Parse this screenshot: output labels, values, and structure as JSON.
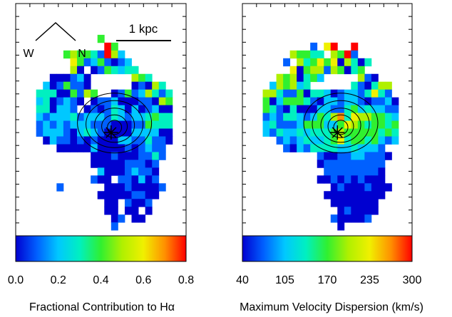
{
  "chart_data": [
    {
      "type": "heatmap",
      "colorbar": {
        "ticks": [
          "0.0",
          "0.2",
          "0.4",
          "0.6",
          "0.8"
        ],
        "range": [
          0.0,
          0.8
        ],
        "label": "Fractional Contribution to Hα"
      },
      "annotations": {
        "scale_bar": "1 kpc",
        "compass_w": "W",
        "compass_n": "N"
      },
      "colormap": [
        "#0000d0",
        "#0060ff",
        "#00c8ff",
        "#00f0c0",
        "#30f030",
        "#b0f000",
        "#f0f000",
        "#ff9000",
        "#ff0000"
      ],
      "grid_cols": 25,
      "grid_rows": 33,
      "fill_tokens": "W:12,4,9 C:13,5,18 E:14,5,8 W:7,6,10 C:8,6,11 T:9,6,6 E:9,6,10 C:10,6,10 E:11,6,6 E:12,6,3 C:13,6,18 C:14,6,12 C:15,6,5 C:8,7,14 E:9,7,8 E:10,7,3 E:11,7,4 E:12,7,8 E:13,7,3 T:14,7,1 E:15,7,2 E:16,7,5 C:8,8,11 E:9,8,0 E:11,8,1 T:12,8,3 C:13,8,10 E:14,8,6 E:15,8,4 E:16,8,7 E:17,8,7 E:5,9,1 E:6,9,1 E:7,9,0 E:8,9,2 E:9,9,4 E:10,9,1 C:17,9,11 T:18,9,8 C:19,9,7 C:4,10,5 E:5,10,1 E:6,10,3 E:7,10,10 T:8,10,2 E:9,10,2 E:10,10,0 T:17,10,0 E:18,10,2 E:19,10,0 C:20,10,11 C:21,10,6 C:3,11,7 C:4,11,7 E:5,11,7 E:6,11,1 E:7,11,0 E:8,11,10 C:9,11,2 C:10,11,11 E:11,11,8 T:14,11,0 E:15,11,3 C:16,11,9 E:17,11,2 E:18,11,4 E:19,11,11 E:20,11,6 E:21,11,3 E:22,11,6 E:3,12,4 C:4,12,6 C:5,12,1 E:6,12,2 T:7,12,5 E:8,12,2 E:9,12,1 E:11,12,1 T:12,12,2 E:13,12,2 E:14,12,4 E:15,12,1 E:16,12,1 E:17,12,1 E:18,12,3 E:19,12,3 E:20,12,0 T:21,12,11 E:22,12,8 C:3,13,6 E:4,13,7 C:5,13,1 E:6,13,5 T:7,13,5 E:8,13,2 E:10,13,1 E:11,13,3 E:12,13,1 E:13,13,3 E:14,13,7 E:15,13,5 E:16,13,0 T:17,13,5 E:18,13,1 E:19,13,2 E:20,13,5 T:21,13,1 E:22,13,1 E:3,14,5 T:4,14,3 T:5,14,4 E:6,14,4 E:7,14,5 E:8,14,6 E:9,14,3 E:10,14,4 E:11,14,4 E:12,14,5 E:13,14,2 E:14,14,6 E:15,14,5 E:16,14,3 E:17,14,4 E:18,14,4 E:19,14,7 E:20,14,8 E:21,14,7 E:22,14,7 E:3,15,3 E:4,15,5 E:5,15,3 E:6,15,5 E:7,15,3 E:8,15,5 T:9,15,5 E:10,15,4 E:11,15,3 E:12,15,2 E:13,15,2 E:14,15,1 E:15,15,0 T:16,15,1 E:17,15,2 E:18,15,3 E:19,15,8 E:20,15,7 E:21,15,6 E:22,15,6 E:3,16,2 E:4,16,4 E:5,16,5 E:6,16,5 T:7,16,3 E:8,16,0 T:9,16,4 E:10,16,6 E:11,16,4 E:12,16,3 E:13,16,1 E:14,16,0 E:15,16,0 E:16,16,0 E:17,16,5 E:18,16,4 E:19,16,4 E:20,16,4 C:21,16,1 E:22,16,1 E:4,17,1 E:5,17,5 E:6,17,3 E:7,17,2 E:8,17,0 C:9,17,2 E:10,17,0 E:11,17,3 E:12,17,0 E:13,17,0 E:14,17,1 C:15,17,4 E:16,17,4 E:17,17,2 E:18,17,3 E:19,17,6 E:20,17,3 E:21,17,2 E:22,17,1 E:6,18,1 E:7,18,1 C:8,18,1 T:9,18,0 T:10,18,1 C:11,18,4 E:12,18,0 E:13,18,0 C:14,18,1 E:15,18,0 E:16,18,3 E:17,18,1 E:18,18,3 E:19,18,5 E:20,18,3 E:21,18,2 E:11,19,0 E:12,19,0 E:13,19,0 E:14,19,2 C:15,19,0 C:16,19,0 E:17,19,0 E:18,19,2 E:19,19,2 E:20,19,7 E:21,19,3 E:11,20,0 E:12,20,0 E:13,20,0 E:14,20,0 E:15,20,0 E:16,20,2 E:17,20,2 E:18,20,3 E:19,20,1 E:20,20,3 E:12,21,5 E:13,21,0 E:14,21,0 E:15,21,1 E:16,21,2 E:17,21,4 T:18,21,2 E:19,21,2 E:20,21,1 C:11,22,2 E:12,22,0 E:13,22,1 E:15,22,2 E:16,22,3 E:17,22,1 E:18,22,4 E:19,22,1 E:20,22,2 E:6,23,3 C:13,23,1 E:14,23,0 E:15,23,1 E:16,23,2 E:17,23,1 E:18,23,0 E:19,23,0 C:20,23,0 E:21,23,2 E:12,24,0 E:13,24,0 E:14,24,1 C:15,24,1 E:16,24,0 E:17,24,2 E:18,24,2 E:19,24,1 C:20,24,0 E:13,25,0 E:14,25,1 E:16,25,3 E:17,25,1 C:18,25,1 E:19,25,3 E:13,26,0 C:14,26,1 E:16,26,1 E:17,26,1 E:19,26,1 E:14,27,1 E:15,27,2 E:17,27,1 E:18,27,1 C:14,28,2"
    },
    {
      "type": "heatmap",
      "colorbar": {
        "ticks": [
          "40",
          "105",
          "170",
          "235",
          "300"
        ],
        "range": [
          40,
          300
        ],
        "label": "Maximum Velocity Dispersion (km/s)"
      },
      "colormap": [
        "#0000d0",
        "#0060ff",
        "#00c8ff",
        "#00f0c0",
        "#30f030",
        "#b0f000",
        "#f0f000",
        "#ff9000",
        "#ff0000"
      ],
      "grid_cols": 25,
      "grid_rows": 33,
      "fill_tokens": "W:10,5,2 E:12,5,13 C:13,5,17 C:16,5,17 W:7,6,12 E:8,6,9 E:9,6,9 C:10,6,7 C:11,6,6 C:13,6,11 E:14,6,8 E:15,6,17 W:16,6,3 E:6,7,2 E:8,7,11 C:9,7,7 E:10,7,10 E:11,7,13 C:12,7,9 E:13,7,14 W:14,7,1 E:15,7,12 E:16,7,6 E:17,7,0 E:18,7,6 C:7,8,13 E:8,8,0 C:9,8,10 E:10,8,11 T:11,8,11 W:12,8,2 C:13,8,11 T:14,8,8 E:15,8,0 E:16,8,7 E:17,8,10 W:5,9,11 E:6,9,10 C:7,9,11 E:8,9,1 E:9,9,6 E:10,9,9 E:11,9,4 T:17,9,12 E:18,9,3 T:19,9,0 E:4,10,5 E:5,10,11 E:6,10,10 T:7,10,11 E:8,10,4 E:9,10,6 W:16,10,6 E:17,10,3 E:18,10,0 E:19,10,6 C:20,10,11 W:21,10,12 E:3,11,12 E:4,11,11 E:5,11,6 E:6,11,2 E:7,11,3 E:8,11,8 C:9,11,1 E:10,11,6 E:11,11,6 E:12,11,4 E:13,11,1 E:14,11,3 E:15,11,5 E:16,11,4 T:17,11,2 E:18,11,7 T:19,11,13 E:20,11,6 E:21,11,2 E:3,12,10 C:4,12,1 E:5,12,4 E:6,12,10 E:7,12,9 E:8,12,9 E:9,12,7 E:10,12,3 E:11,12,1 E:12,12,4 E:13,12,5 E:14,12,3 E:15,12,4 E:16,12,4 E:17,12,3 E:18,12,1 E:19,12,3 E:20,12,3 E:21,12,4 E:22,12,0 E:3,13,8 C:4,13,6 E:5,13,2 E:6,13,0 E:7,13,6 E:8,13,1 E:9,13,1 E:10,13,1 T:11,13,5 T:12,13,5 E:13,13,2 E:14,13,3 E:15,13,6 E:16,13,8 E:17,13,4 E:18,13,6 E:19,13,4 E:20,13,4 E:21,13,3 E:22,13,3 E:3,14,2 E:4,14,5 T:5,14,2 E:6,14,6 C:7,14,7 E:8,14,4 E:9,14,2 E:10,14,5 E:11,14,9 E:12,14,6 C:13,14,12 E:14,14,15 E:15,14,6 E:16,14,13 E:17,14,11 E:18,14,12 E:19,14,8 E:20,14,9 E:21,14,6 E:22,14,4 T:3,15,5 E:4,15,6 E:5,15,3 E:6,15,2 T:7,15,3 E:8,15,4 T:9,15,8 T:10,15,9 E:11,15,8 E:12,15,5 C:13,15,5 E:14,15,9 E:15,15,13 E:16,15,11 E:17,15,9 E:18,15,7 E:19,15,8 E:20,15,9 E:21,15,6 E:22,15,8 E:3,16,4 E:4,16,3 E:5,16,6 E:6,16,5 T:7,16,5 E:8,16,6 E:9,16,5 E:10,16,6 E:11,16,7 E:12,16,6 E:13,16,10 E:14,16,12 C:15,16,9 E:16,16,8 E:17,16,8 E:18,16,8 E:19,16,8 E:20,16,7 E:21,16,9 E:22,16,7 E:5,17,3 E:6,17,5 E:7,17,2 E:8,17,4 E:9,17,6 E:10,17,4 E:11,17,5 E:12,17,6 E:13,17,9 E:14,17,13 E:15,17,7 E:16,17,8 C:17,17,8 E:18,17,7 E:19,17,8 E:20,17,5 E:21,17,3 C:22,17,4 E:6,18,3 E:7,18,0 C:8,18,4 E:9,18,3 E:10,18,6 C:11,18,7 E:12,18,7 E:13,18,7 E:14,18,5 E:15,18,4 E:16,18,7 E:17,18,5 E:18,18,5 E:19,18,5 E:20,18,3 E:11,19,3 E:12,19,0 E:13,19,1 E:14,19,2 E:15,19,3 E:16,19,4 E:17,19,4 E:18,19,3 E:19,19,3 E:20,19,3 E:21,19,1 E:11,20,0 E:12,20,2 E:13,20,2 E:14,20,3 E:15,20,2 E:16,20,2 E:17,20,2 E:18,20,2 E:19,20,3 E:20,20,2 E:12,21,2 E:13,21,2 E:14,21,2 E:15,21,3 E:16,21,2 E:17,21,2 E:18,21,2 E:19,21,2 E:20,21,1 E:11,22,1 E:12,22,1 E:13,22,3 E:14,22,1 E:15,22,2 E:16,22,1 E:17,22,2 E:18,22,1 E:19,22,0 C:20,22,0 E:13,23,0 T:14,23,2 E:15,23,1 C:16,23,1 E:17,23,1 E:18,23,2 E:19,23,1 W:20,23,0 E:21,23,1 E:12,24,1 E:13,24,1 E:14,24,1 E:15,24,1 C:16,24,1 E:17,24,1 E:18,24,1 E:19,24,0 W:20,24,0 E:13,25,0 E:14,25,1 E:15,25,1 E:16,25,1 E:17,25,1 E:18,25,1 E:19,25,0 E:14,26,1 E:15,26,2 E:16,26,0 E:17,26,0 E:18,26,1 E:19,26,1 E:13,27,2 E:14,27,0 E:15,27,0 E:16,27,1 E:17,27,1 E:18,27,2 E:14,28,1"
    }
  ]
}
